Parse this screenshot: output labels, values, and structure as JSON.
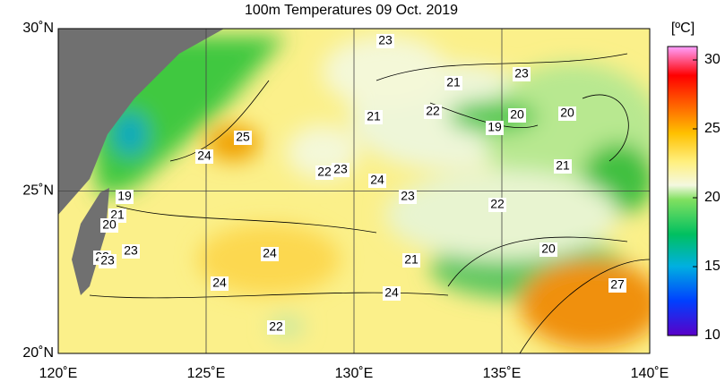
{
  "title": "100m Temperatures  09 Oct. 2019",
  "unit": "[ºC]",
  "lon_labels": [
    "120˚E",
    "125˚E",
    "130˚E",
    "135˚E",
    "140˚E"
  ],
  "lat_labels": [
    "20˚N",
    "25˚N",
    "30˚N"
  ],
  "colorbar_ticks": [
    10,
    15,
    20,
    25,
    30
  ],
  "contour_labels": [
    23,
    23,
    21,
    22,
    21,
    19,
    20,
    20,
    25,
    24,
    21,
    22,
    23,
    24,
    23,
    22,
    19,
    21,
    20,
    23,
    24,
    20,
    21,
    22,
    23,
    24,
    24,
    27,
    22
  ]
}
